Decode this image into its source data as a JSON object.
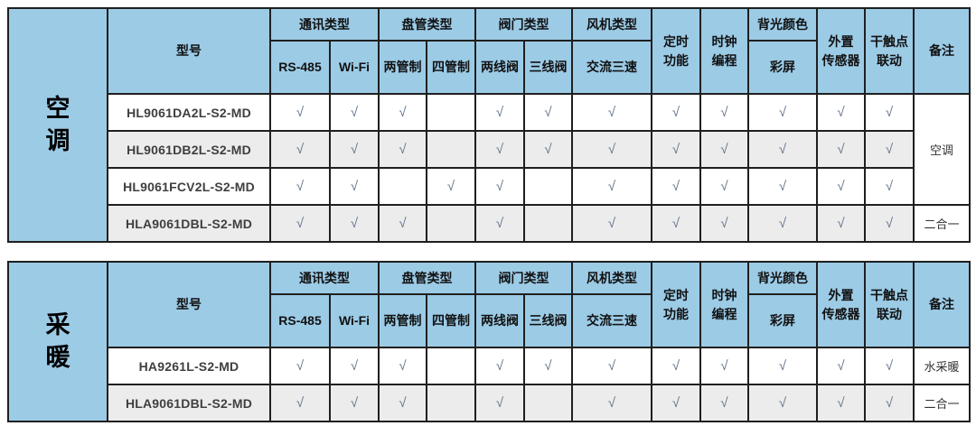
{
  "check_mark": "√",
  "colors": {
    "header_blue": "#9CCBE6",
    "stripe_gray": "#ECECEC",
    "check_color": "#62738A",
    "border_dark": "#1f1f1f",
    "border_light": "#C4C4C4"
  },
  "header": {
    "model_col": "型号",
    "columns": [
      {
        "type": "group",
        "label": "通讯类型",
        "subs": [
          "RS-485",
          "Wi-Fi"
        ]
      },
      {
        "type": "group",
        "label": "盘管类型",
        "subs": [
          "两管制",
          "四管制"
        ]
      },
      {
        "type": "group",
        "label": "阀门类型",
        "subs": [
          "两线阀",
          "三线阀"
        ]
      },
      {
        "type": "group",
        "label": "风机类型",
        "subs": [
          "交流三速"
        ]
      },
      {
        "type": "tall",
        "lines": [
          "定时",
          "功能"
        ]
      },
      {
        "type": "tall",
        "lines": [
          "时钟",
          "编程"
        ]
      },
      {
        "type": "group",
        "label": "背光颜色",
        "subs": [
          "彩屏"
        ]
      },
      {
        "type": "tall",
        "lines": [
          "外置",
          "传感器"
        ]
      },
      {
        "type": "tall",
        "lines": [
          "干触点",
          "联动"
        ]
      },
      {
        "type": "tall",
        "lines": [
          "备注"
        ]
      }
    ]
  },
  "tables": [
    {
      "group_label_lines": [
        "空",
        "调"
      ],
      "rows": [
        {
          "model": "HL9061DA2L-S2-MD",
          "checks": [
            1,
            1,
            1,
            0,
            1,
            1,
            1,
            1,
            1,
            1,
            1,
            1
          ],
          "remark": {
            "text": "空调",
            "rowspan": 3
          }
        },
        {
          "model": "HL9061DB2L-S2-MD",
          "checks": [
            1,
            1,
            1,
            0,
            1,
            1,
            1,
            1,
            1,
            1,
            1,
            1
          ]
        },
        {
          "model": "HL9061FCV2L-S2-MD",
          "checks": [
            1,
            1,
            0,
            1,
            1,
            0,
            1,
            1,
            1,
            1,
            1,
            1
          ]
        },
        {
          "model": "HLA9061DBL-S2-MD",
          "checks": [
            1,
            1,
            1,
            0,
            1,
            0,
            1,
            1,
            1,
            1,
            1,
            1
          ],
          "remark": {
            "text": "二合一",
            "rowspan": 1
          }
        }
      ]
    },
    {
      "group_label_lines": [
        "采",
        "暖"
      ],
      "rows": [
        {
          "model": "HA9261L-S2-MD",
          "checks": [
            1,
            1,
            1,
            0,
            1,
            1,
            1,
            1,
            1,
            1,
            1,
            1
          ],
          "remark": {
            "text": "水采暖",
            "rowspan": 1
          }
        },
        {
          "model": "HLA9061DBL-S2-MD",
          "checks": [
            1,
            1,
            1,
            0,
            1,
            0,
            1,
            1,
            1,
            1,
            1,
            1
          ],
          "remark": {
            "text": "二合一",
            "rowspan": 1
          }
        }
      ]
    }
  ]
}
